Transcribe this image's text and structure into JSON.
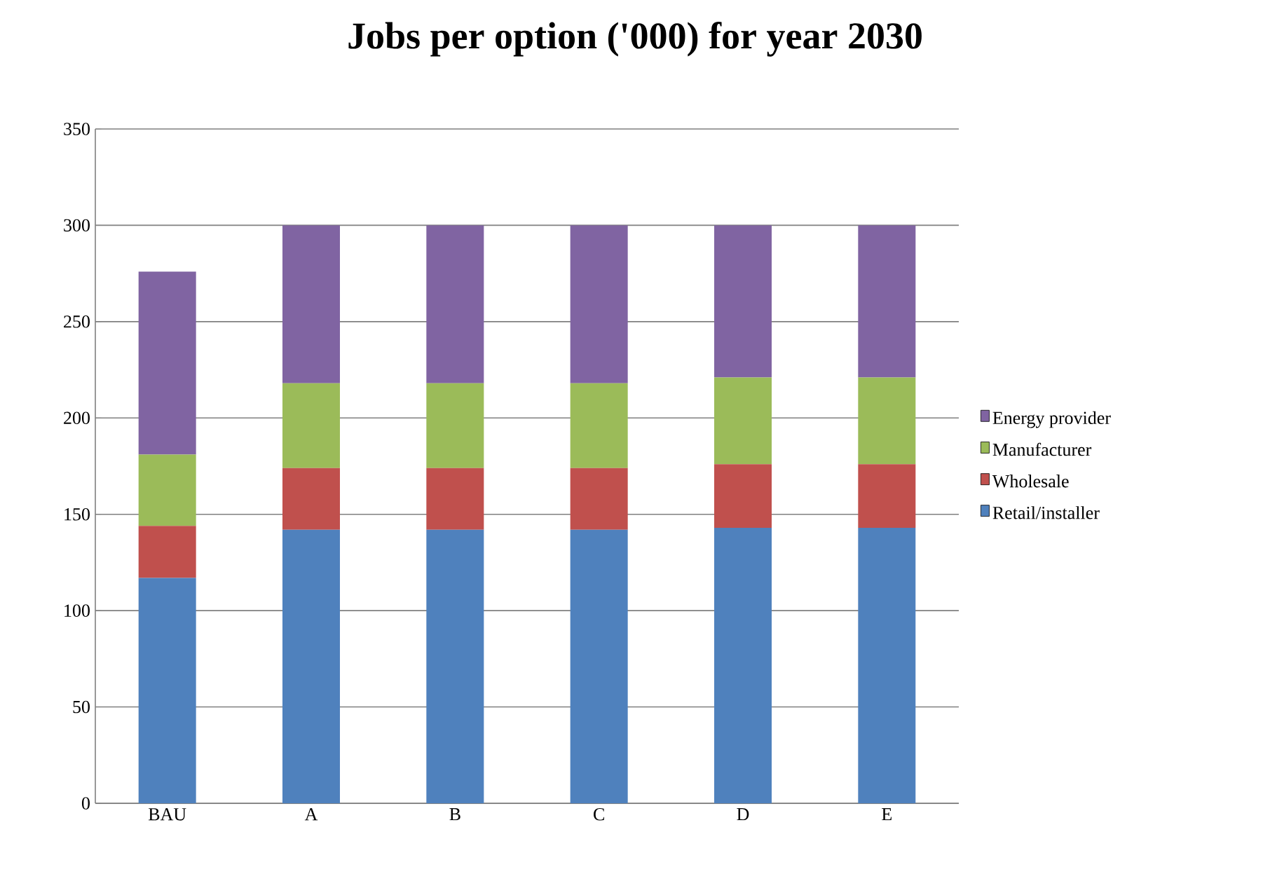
{
  "chart_data": {
    "type": "bar",
    "title": "Jobs per option ('000) for year 2030",
    "categories": [
      "BAU",
      "A",
      "B",
      "C",
      "D",
      "E"
    ],
    "series": [
      {
        "name": "Retail/installer",
        "color": "#4f81bd",
        "values": [
          117,
          142,
          142,
          142,
          143,
          143
        ]
      },
      {
        "name": "Wholesale",
        "color": "#c0504d",
        "values": [
          27,
          32,
          32,
          32,
          33,
          33
        ]
      },
      {
        "name": "Manufacturer",
        "color": "#9bbb59",
        "values": [
          37,
          44,
          44,
          44,
          45,
          45
        ]
      },
      {
        "name": "Energy provider",
        "color": "#8064a2",
        "values": [
          95,
          82,
          82,
          82,
          79,
          79
        ]
      }
    ],
    "stacked": true,
    "ylim": [
      0,
      350
    ],
    "yticks": [
      0,
      50,
      100,
      150,
      200,
      250,
      300,
      350
    ],
    "grid": "y",
    "legend": "right"
  }
}
